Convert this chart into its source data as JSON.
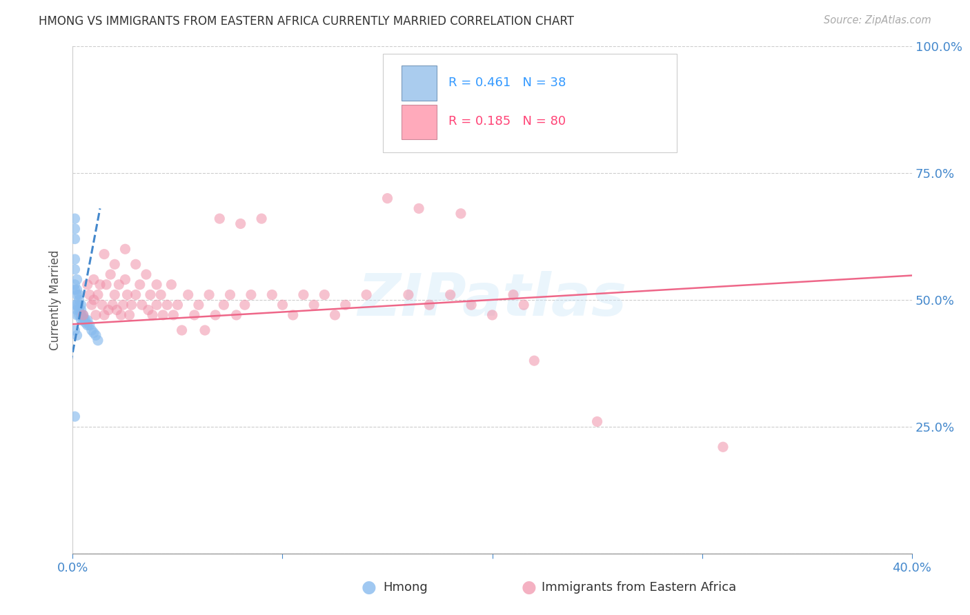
{
  "title": "HMONG VS IMMIGRANTS FROM EASTERN AFRICA CURRENTLY MARRIED CORRELATION CHART",
  "source": "Source: ZipAtlas.com",
  "ylabel": "Currently Married",
  "watermark": "ZIPatlas",
  "bottom_legend": [
    "Hmong",
    "Immigrants from Eastern Africa"
  ],
  "xlim": [
    0.0,
    0.4
  ],
  "ylim": [
    0.0,
    1.0
  ],
  "yticks": [
    0.0,
    0.25,
    0.5,
    0.75,
    1.0
  ],
  "ytick_labels": [
    "",
    "25.0%",
    "50.0%",
    "75.0%",
    "100.0%"
  ],
  "xticks": [
    0.0,
    0.1,
    0.2,
    0.3,
    0.4
  ],
  "xtick_labels": [
    "0.0%",
    "",
    "",
    "",
    "40.0%"
  ],
  "tick_color": "#4488cc",
  "grid_color": "#cccccc",
  "background_color": "#ffffff",
  "hmong_x": [
    0.001,
    0.001,
    0.001,
    0.001,
    0.001,
    0.001,
    0.001,
    0.002,
    0.002,
    0.002,
    0.002,
    0.002,
    0.002,
    0.003,
    0.003,
    0.003,
    0.003,
    0.003,
    0.004,
    0.004,
    0.004,
    0.004,
    0.005,
    0.005,
    0.005,
    0.006,
    0.006,
    0.007,
    0.007,
    0.008,
    0.009,
    0.01,
    0.011,
    0.012,
    0.001,
    0.002,
    0.001,
    0.001
  ],
  "hmong_y": [
    0.66,
    0.64,
    0.62,
    0.58,
    0.56,
    0.53,
    0.52,
    0.54,
    0.52,
    0.51,
    0.49,
    0.48,
    0.47,
    0.51,
    0.5,
    0.49,
    0.48,
    0.47,
    0.49,
    0.48,
    0.47,
    0.46,
    0.47,
    0.465,
    0.46,
    0.46,
    0.455,
    0.46,
    0.45,
    0.45,
    0.44,
    0.435,
    0.43,
    0.42,
    0.27,
    0.43,
    0.49,
    0.44
  ],
  "eastern_x": [
    0.005,
    0.007,
    0.008,
    0.009,
    0.01,
    0.01,
    0.011,
    0.012,
    0.013,
    0.014,
    0.015,
    0.015,
    0.016,
    0.017,
    0.018,
    0.019,
    0.02,
    0.02,
    0.021,
    0.022,
    0.023,
    0.024,
    0.025,
    0.025,
    0.026,
    0.027,
    0.028,
    0.03,
    0.03,
    0.032,
    0.033,
    0.035,
    0.036,
    0.037,
    0.038,
    0.04,
    0.04,
    0.042,
    0.043,
    0.045,
    0.047,
    0.048,
    0.05,
    0.052,
    0.055,
    0.058,
    0.06,
    0.063,
    0.065,
    0.068,
    0.07,
    0.072,
    0.075,
    0.078,
    0.08,
    0.082,
    0.085,
    0.09,
    0.095,
    0.1,
    0.105,
    0.11,
    0.115,
    0.12,
    0.125,
    0.13,
    0.14,
    0.15,
    0.16,
    0.165,
    0.17,
    0.18,
    0.185,
    0.19,
    0.2,
    0.21,
    0.215,
    0.22,
    0.25,
    0.31
  ],
  "eastern_y": [
    0.47,
    0.53,
    0.51,
    0.49,
    0.5,
    0.54,
    0.47,
    0.51,
    0.53,
    0.49,
    0.59,
    0.47,
    0.53,
    0.48,
    0.55,
    0.49,
    0.57,
    0.51,
    0.48,
    0.53,
    0.47,
    0.49,
    0.6,
    0.54,
    0.51,
    0.47,
    0.49,
    0.57,
    0.51,
    0.53,
    0.49,
    0.55,
    0.48,
    0.51,
    0.47,
    0.53,
    0.49,
    0.51,
    0.47,
    0.49,
    0.53,
    0.47,
    0.49,
    0.44,
    0.51,
    0.47,
    0.49,
    0.44,
    0.51,
    0.47,
    0.66,
    0.49,
    0.51,
    0.47,
    0.65,
    0.49,
    0.51,
    0.66,
    0.51,
    0.49,
    0.47,
    0.51,
    0.49,
    0.51,
    0.47,
    0.49,
    0.51,
    0.7,
    0.51,
    0.68,
    0.49,
    0.51,
    0.67,
    0.49,
    0.47,
    0.51,
    0.49,
    0.38,
    0.26,
    0.21
  ],
  "hmong_color": "#88bbee",
  "eastern_color": "#f090a8",
  "hmong_trend_x": [
    -0.001,
    0.013
  ],
  "hmong_trend_y": [
    0.375,
    0.68
  ],
  "eastern_trend_x": [
    0.0,
    0.4
  ],
  "eastern_trend_y": [
    0.452,
    0.548
  ],
  "hmong_trend_color": "#4488cc",
  "eastern_trend_color": "#ee6688",
  "legend_r1": "R = 0.461",
  "legend_n1": "N = 38",
  "legend_r2": "R = 0.185",
  "legend_n2": "N = 80",
  "legend_color1": "#3399ff",
  "legend_color2": "#ff4477"
}
